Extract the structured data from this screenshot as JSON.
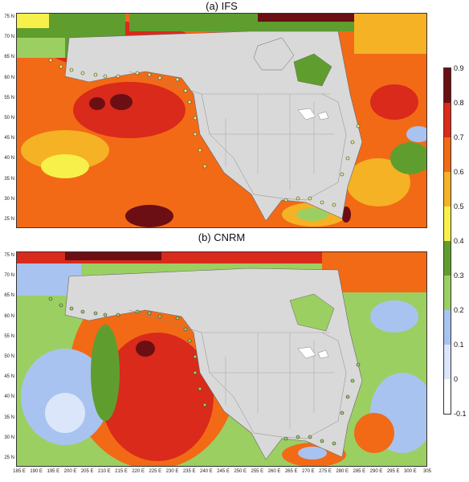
{
  "panels": [
    {
      "title": "(a) IFS"
    },
    {
      "title": "(b) CNRM"
    }
  ],
  "lat_labels": [
    "75 N",
    "70 N",
    "65 N",
    "60 N",
    "55 N",
    "50 N",
    "45 N",
    "40 N",
    "35 N",
    "30 N",
    "25 N"
  ],
  "lon_labels": [
    "185 E",
    "190 E",
    "195 E",
    "200 E",
    "205 E",
    "210 E",
    "215 E",
    "220 E",
    "225 E",
    "230 E",
    "235 E",
    "240 E",
    "245 E",
    "250 E",
    "255 E",
    "260 E",
    "265 E",
    "270 E",
    "275 E",
    "280 E",
    "285 E",
    "290 E",
    "295 E",
    "300 E",
    "305"
  ],
  "colorbar": {
    "ticks": [
      "0.9",
      "0.8",
      "0.7",
      "0.6",
      "0.5",
      "0.4",
      "0.3",
      "0.2",
      "0.1",
      "0",
      "-0.1"
    ],
    "colors": [
      "#6b0f14",
      "#d92a1c",
      "#f26a16",
      "#f5b224",
      "#f8f04a",
      "#5f9e2e",
      "#9ccf62",
      "#a9c3f0",
      "#dbe6fb",
      "#ffffff"
    ]
  },
  "colors": {
    "land": "#d9d9d9",
    "border": "#8a8a8a",
    "station_outline": "#333333"
  }
}
